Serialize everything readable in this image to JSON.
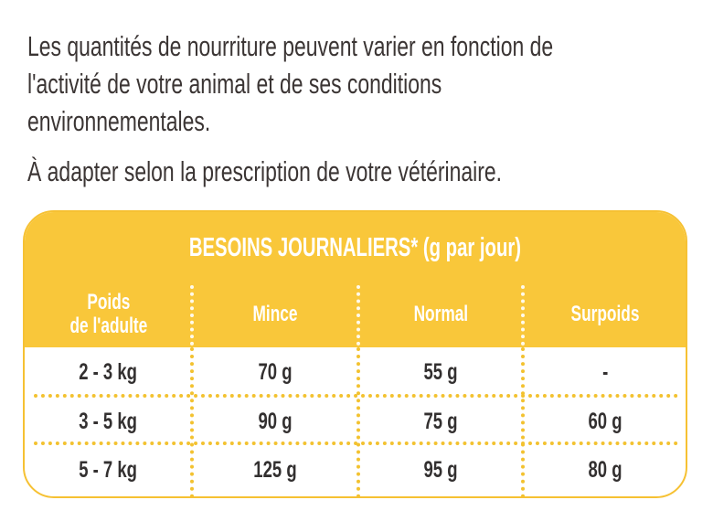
{
  "intro": {
    "paragraph1_lines": [
      "Les quantités de nourriture peuvent varier en fonction de",
      "l'activité de votre animal et de ses conditions",
      "environnementales."
    ],
    "paragraph2": "À adapter selon la prescription de votre vétérinaire."
  },
  "table": {
    "title": "BESOINS JOURNALIERS* (g par jour)",
    "columns": [
      "Poids",
      "de l'adulte",
      "Mince",
      "Normal",
      "Surpoids"
    ],
    "headers": {
      "weight_line1": "Poids",
      "weight_line2": "de l'adulte",
      "thin": "Mince",
      "normal": "Normal",
      "overweight": "Surpoids"
    },
    "rows": [
      {
        "weight": "2 - 3 kg",
        "thin": "70 g",
        "normal": "55 g",
        "overweight": "-"
      },
      {
        "weight": "3 - 5 kg",
        "thin": "90 g",
        "normal": "75 g",
        "overweight": "60 g"
      },
      {
        "weight": "5 - 7 kg",
        "thin": "125 g",
        "normal": "95 g",
        "overweight": "80 g"
      }
    ]
  },
  "colors": {
    "accent_yellow": "#f9c73a",
    "text_dark": "#3b3534",
    "header_text": "#ffffff"
  }
}
